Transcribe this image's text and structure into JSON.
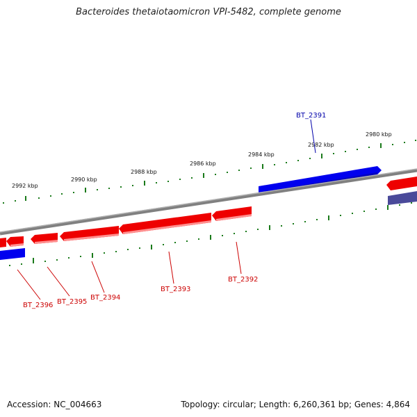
{
  "title": "Bacteroides thetaiotaomicron VPI-5482, complete genome",
  "footer": {
    "accession": "Accession: NC_004663",
    "summary": "Topology: circular; Length: 6,260,361 bp; Genes: 4,864"
  },
  "colors": {
    "forward_gene": "#0000ee",
    "forward_gene_alt": "#4a4a9a",
    "reverse_gene": "#ee0000",
    "backbone": "#808080",
    "tick": "#1a7a1a",
    "forward_label": "#0000aa",
    "reverse_label": "#cc0000"
  },
  "kbp_labels": [
    "2980 kbp",
    "2982 kbp",
    "2984 kbp",
    "2986 kbp",
    "2988 kbp",
    "2990 kbp",
    "2992 kbp"
  ],
  "gene_labels": {
    "bt2391": "BT_2391",
    "bt2392": "BT_2392",
    "bt2393": "BT_2393",
    "bt2394": "BT_2394",
    "bt2395": "BT_2395",
    "bt2396": "BT_2396"
  }
}
